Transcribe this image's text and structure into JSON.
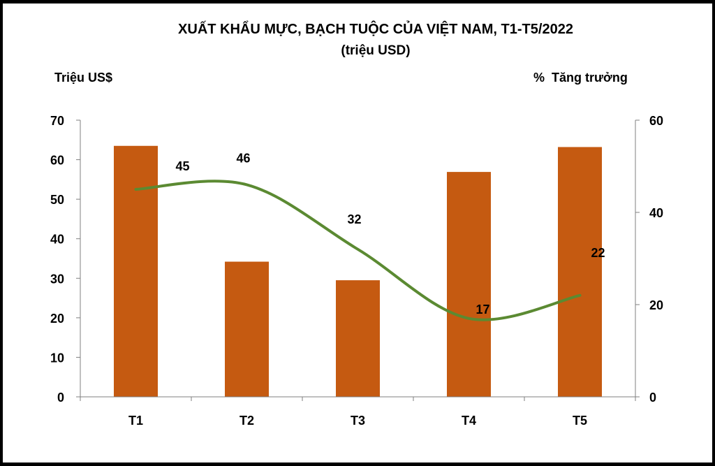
{
  "chart_data": {
    "type": "bar",
    "title": "XUẤT KHẨU MỰC, BẠCH TUỘC CỦA VIỆT NAM,  T1-T5/2022",
    "subtitle": "(triệu USD)",
    "ylabel": "Triệu US$",
    "y2label": "%  Tăng trưởng",
    "categories": [
      "T1",
      "T2",
      "T3",
      "T4",
      "T5"
    ],
    "ylim": [
      0,
      70
    ],
    "yticks": [
      0,
      10,
      20,
      30,
      40,
      50,
      60,
      70
    ],
    "y2lim": [
      0,
      60
    ],
    "y2ticks": [
      0,
      20,
      40,
      60
    ],
    "series": [
      {
        "type": "bar",
        "axis": "left",
        "color": "#C55A11",
        "values": [
          63.5,
          34.2,
          29.5,
          56.9,
          63.2
        ]
      },
      {
        "type": "line",
        "axis": "right",
        "color": "#5B8A32",
        "smooth": true,
        "values": [
          45,
          46,
          32,
          17,
          22
        ],
        "data_labels": [
          "45",
          "46",
          "32",
          "17",
          "22"
        ]
      }
    ],
    "grid": false,
    "legend": "none"
  }
}
